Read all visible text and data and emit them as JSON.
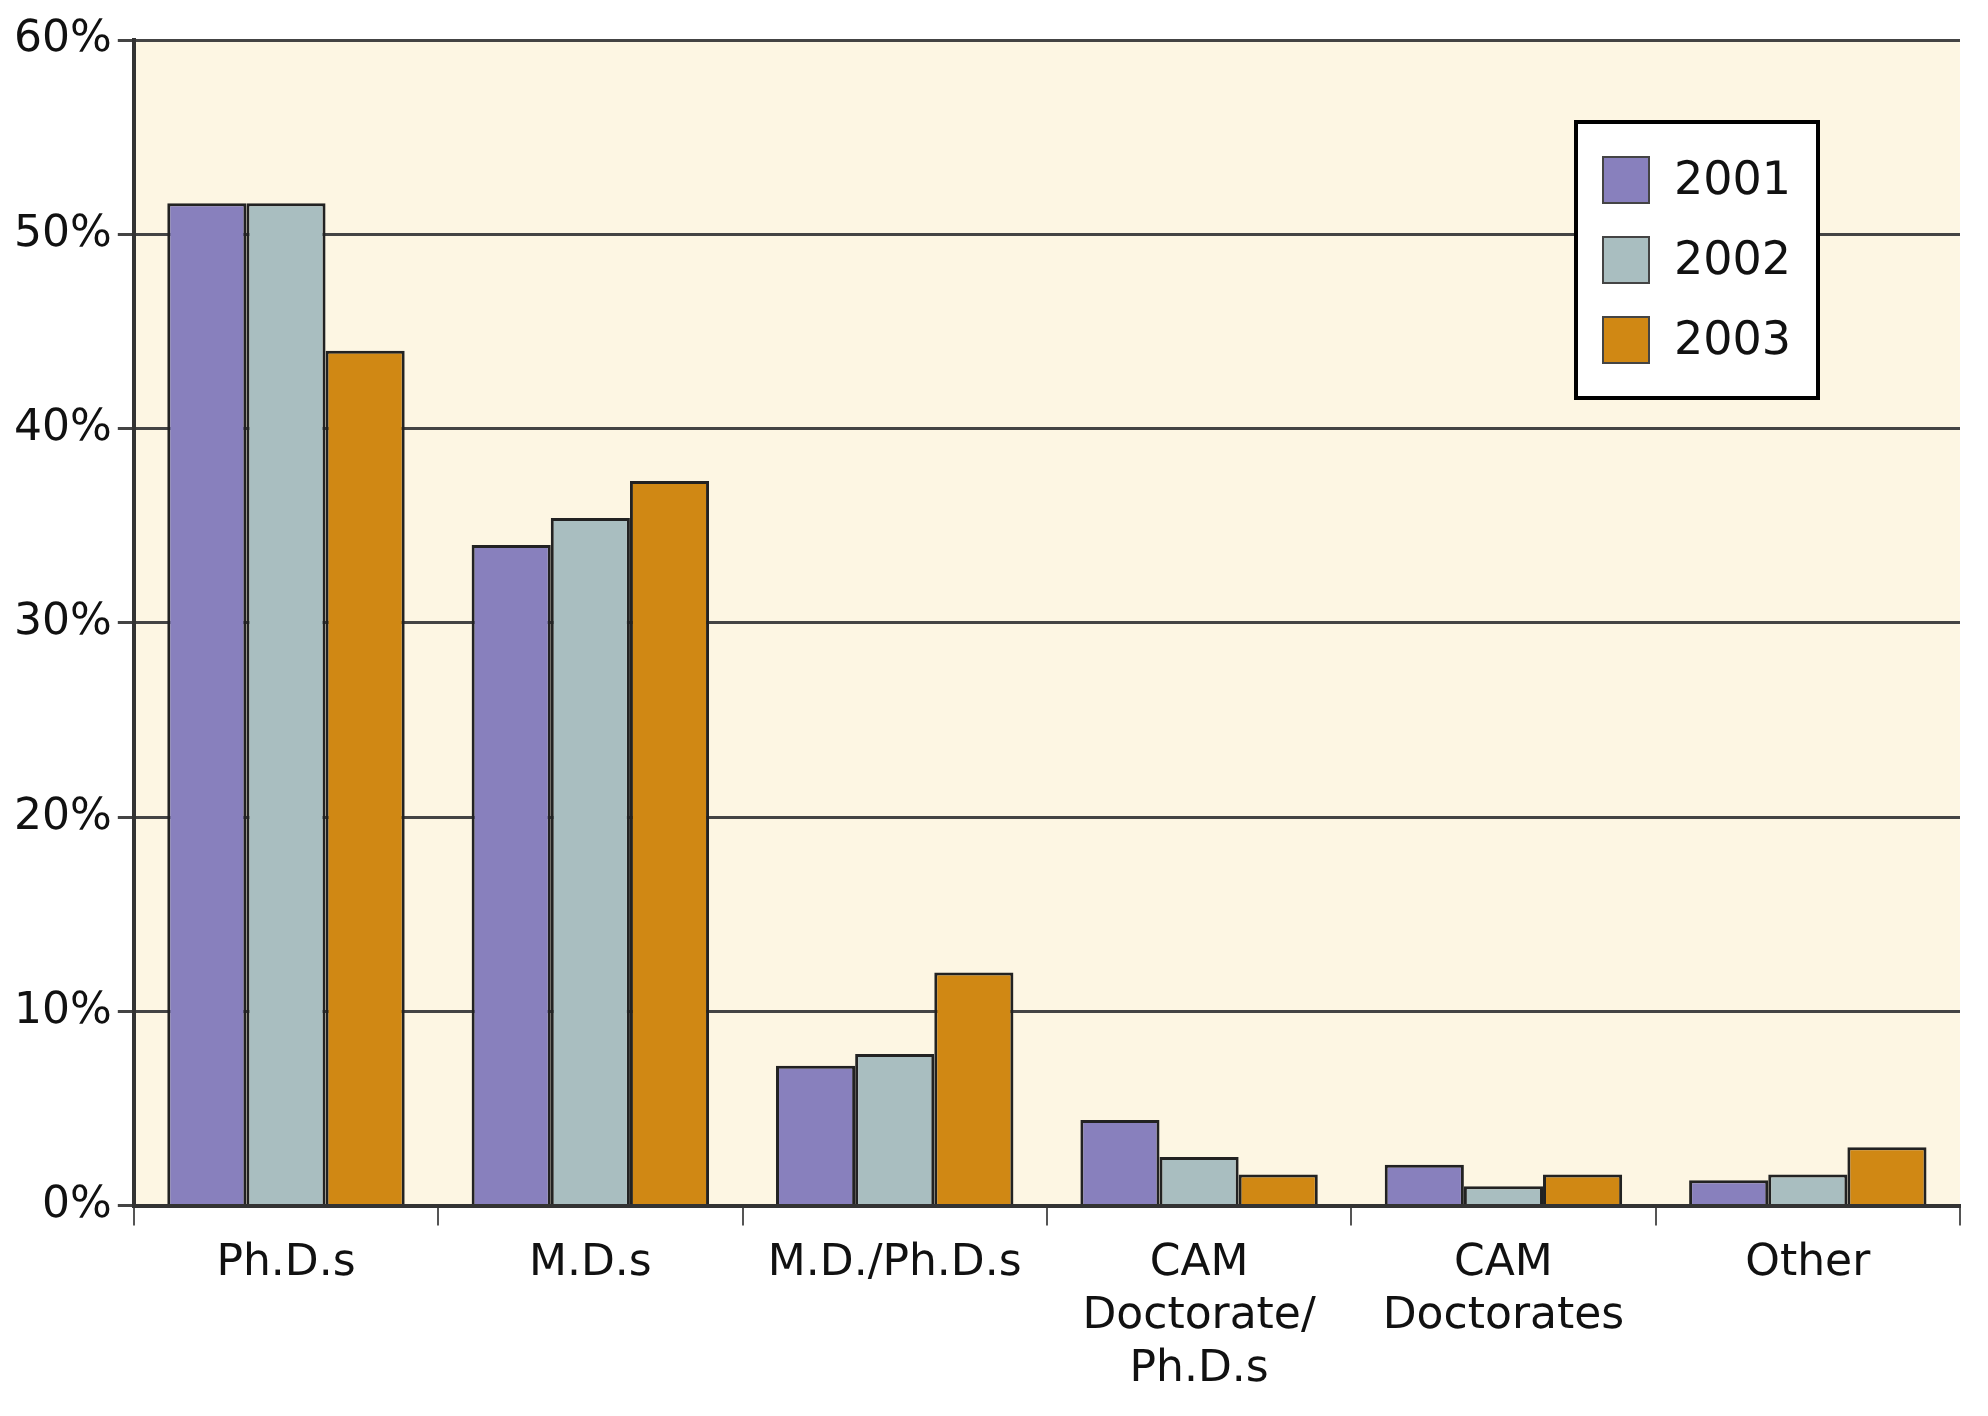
{
  "chart_data": {
    "type": "bar",
    "categories": [
      "Ph.D.s",
      "M.D.s",
      "M.D./Ph.D.s",
      "CAM\nDoctorate/\nPh.D.s",
      "CAM\nDoctorates",
      "Other"
    ],
    "series": [
      {
        "name": "2001",
        "color": "#8880bd",
        "values": [
          51.6,
          34.0,
          7.2,
          4.4,
          2.1,
          1.3
        ]
      },
      {
        "name": "2002",
        "color": "#a9bec0",
        "values": [
          51.6,
          35.4,
          7.8,
          2.5,
          1.0,
          1.6
        ]
      },
      {
        "name": "2003",
        "color": "#d08814",
        "values": [
          44.0,
          37.3,
          12.0,
          1.6,
          1.6,
          3.0
        ]
      }
    ],
    "ylim": [
      0,
      60
    ],
    "yticks": [
      {
        "value": 0,
        "label": "0%"
      },
      {
        "value": 10,
        "label": "10%"
      },
      {
        "value": 20,
        "label": "20%"
      },
      {
        "value": 30,
        "label": "30%"
      },
      {
        "value": 40,
        "label": "40%"
      },
      {
        "value": 50,
        "label": "50%"
      },
      {
        "value": 60,
        "label": "60%"
      }
    ],
    "grid": "y",
    "legend": "top right"
  }
}
